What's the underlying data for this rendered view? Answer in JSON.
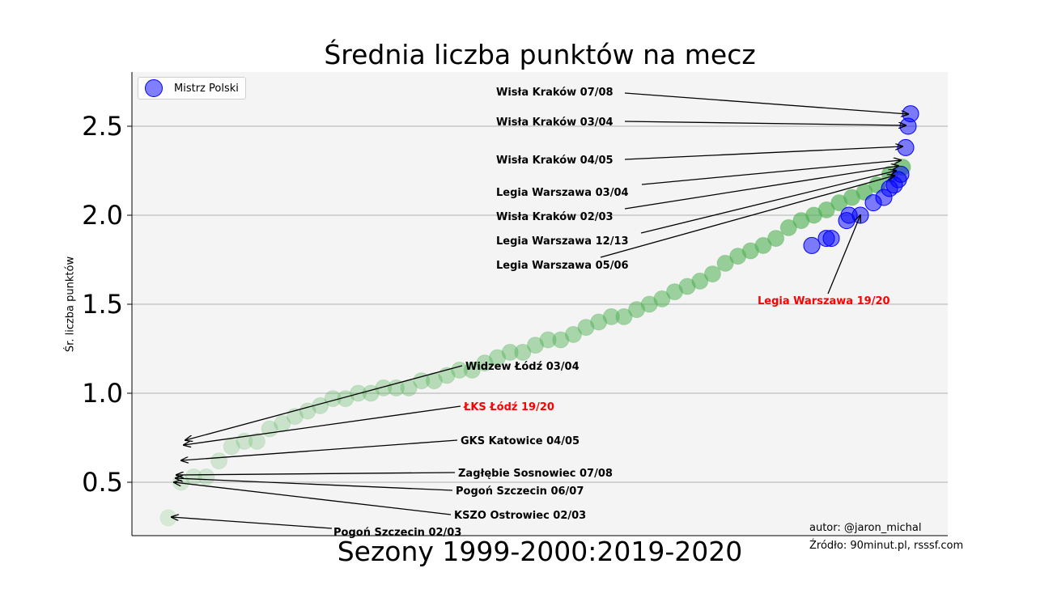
{
  "chart_data": {
    "type": "scatter",
    "title": "Średnia liczba punktów na mecz",
    "xlabel": "Sezony 1999-2000:2019-2020",
    "ylabel": "Śr. liczba punktów",
    "ylim": [
      0.2,
      2.8
    ],
    "yticks": [
      "0.5",
      "1.0",
      "1.5",
      "2.0",
      "2.5"
    ],
    "grid": "horizontal",
    "background": "#f4f4f4",
    "colors": {
      "champion": "#0000ff",
      "other": "#4caf50",
      "highlight": "#ff0000"
    },
    "legend": {
      "position": "top-left",
      "entries": [
        "Mistrz Polski"
      ]
    },
    "series": [
      {
        "name": "Mistrz Polski",
        "points": [
          {
            "x": 1,
            "y": 1.83
          },
          {
            "x": 2,
            "y": 1.87
          },
          {
            "x": 3,
            "y": 1.87
          },
          {
            "x": 4,
            "y": 1.97
          },
          {
            "x": 5,
            "y": 2.0
          },
          {
            "x": 6,
            "y": 2.0
          },
          {
            "x": 7,
            "y": 2.07
          },
          {
            "x": 8,
            "y": 2.1
          },
          {
            "x": 9,
            "y": 2.15
          },
          {
            "x": 10,
            "y": 2.17
          },
          {
            "x": 11,
            "y": 2.2
          },
          {
            "x": 12,
            "y": 2.23
          },
          {
            "x": 13,
            "y": 2.38
          },
          {
            "x": 14,
            "y": 2.5
          },
          {
            "x": 15,
            "y": 2.57
          }
        ]
      }
    ],
    "other_seasons_y": [
      0.3,
      0.5,
      0.53,
      0.53,
      0.62,
      0.7,
      0.73,
      0.73,
      0.8,
      0.83,
      0.87,
      0.9,
      0.93,
      0.97,
      0.97,
      1.0,
      1.0,
      1.03,
      1.03,
      1.03,
      1.07,
      1.07,
      1.1,
      1.13,
      1.13,
      1.17,
      1.2,
      1.23,
      1.23,
      1.27,
      1.3,
      1.3,
      1.33,
      1.37,
      1.4,
      1.43,
      1.43,
      1.47,
      1.5,
      1.53,
      1.57,
      1.6,
      1.63,
      1.67,
      1.73,
      1.77,
      1.8,
      1.83,
      1.87,
      1.93,
      1.97,
      2.0,
      2.03,
      2.07,
      2.1,
      2.13,
      2.17,
      2.23,
      2.27
    ],
    "annotations": [
      {
        "text": "Wisła Kraków 07/08",
        "y": 2.57,
        "color": "#000000"
      },
      {
        "text": "Wisła Kraków 03/04",
        "y": 2.5,
        "color": "#000000"
      },
      {
        "text": "Wisła Kraków 04/05",
        "y": 2.38,
        "color": "#000000"
      },
      {
        "text": "Legia Warszawa 03/04",
        "y": 2.3,
        "color": "#000000"
      },
      {
        "text": "Wisła Kraków 02/03",
        "y": 2.27,
        "color": "#000000"
      },
      {
        "text": "Legia Warszawa 12/13",
        "y": 2.23,
        "color": "#000000"
      },
      {
        "text": "Legia Warszawa 05/06",
        "y": 2.2,
        "color": "#000000"
      },
      {
        "text": "Legia Warszawa 19/20",
        "y": 2.0,
        "color": "#ff0000"
      },
      {
        "text": "Widzew Łódź 03/04",
        "y": 0.73,
        "color": "#000000"
      },
      {
        "text": "ŁKS Łódź 19/20",
        "y": 0.7,
        "color": "#ff0000"
      },
      {
        "text": "GKS Katowice 04/05",
        "y": 0.62,
        "color": "#000000"
      },
      {
        "text": "Zagłębie Sosnowiec 07/08",
        "y": 0.53,
        "color": "#000000"
      },
      {
        "text": "Pogoń Szczecin 06/07",
        "y": 0.53,
        "color": "#000000"
      },
      {
        "text": "KSZO Ostrowiec 02/03",
        "y": 0.5,
        "color": "#000000"
      },
      {
        "text": "Pogoń Szczecin 02/03",
        "y": 0.3,
        "color": "#000000"
      }
    ]
  },
  "credits": {
    "author": "autor: @jaron_michal",
    "source": "Źródło: 90minut.pl, rsssf.com"
  }
}
